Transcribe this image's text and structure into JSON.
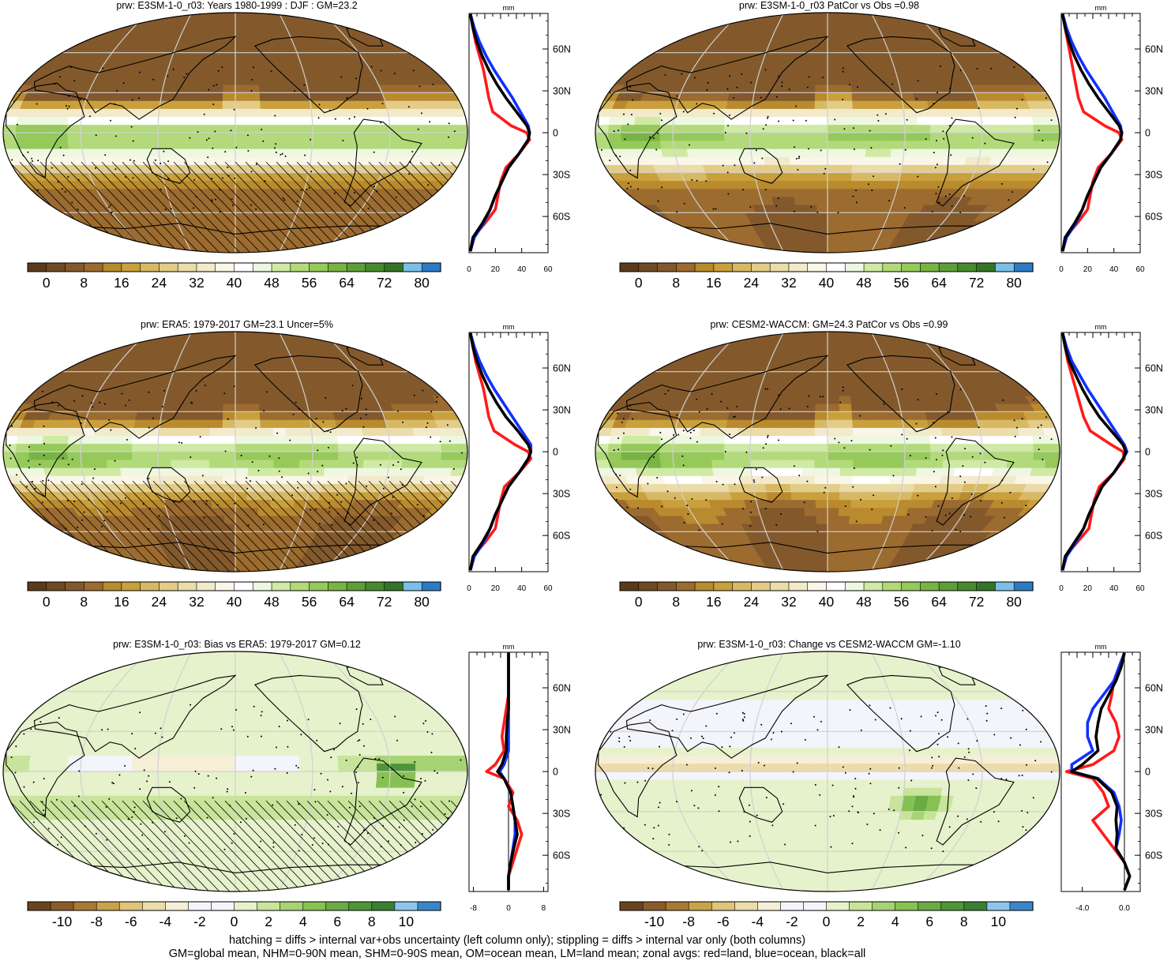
{
  "colors": {
    "abs_levels": [
      "#5a3a1a",
      "#6e4a24",
      "#83592c",
      "#9c6b2f",
      "#b98a2e",
      "#c9a03c",
      "#d8b963",
      "#e3cc88",
      "#ecdcaa",
      "#f3eacb",
      "#faf6e8",
      "#ffffff",
      "#eef8e0",
      "#cfeaa4",
      "#b2da7a",
      "#95c95a",
      "#78b444",
      "#5e9e37",
      "#478a2e",
      "#337527",
      "#7cc0e8",
      "#2c7bc4"
    ],
    "diff_levels": [
      "#6a4420",
      "#8a5c2a",
      "#a87a34",
      "#c9a24a",
      "#dfc47a",
      "#ecdcac",
      "#f6efd6",
      "#f4f5fb",
      "#f4f5fb",
      "#e6f2cc",
      "#c8e49a",
      "#a6d373",
      "#86c153",
      "#6aab45",
      "#4f953a",
      "#3a7f32",
      "#8cc6ec",
      "#3a86c8"
    ],
    "zonal_land": "#ff1a1a",
    "zonal_ocean": "#1030ff",
    "zonal_all": "#000000"
  },
  "chart_data": [
    {
      "type": "heatmap",
      "title": "prw: E3SM-1-0_r03: Years 1980-1999 : DJF : GM=23.2",
      "colorbar_ticks": [
        "0",
        "8",
        "16",
        "24",
        "32",
        "40",
        "48",
        "56",
        "64",
        "72",
        "80"
      ],
      "zonal": {
        "unit": "mm",
        "xlim": [
          0,
          60
        ],
        "xticks": [
          "0",
          "20",
          "40",
          "60"
        ],
        "lat_ticks": [
          "60N",
          "30N",
          "0",
          "30S",
          "60S"
        ],
        "lat": [
          85,
          75,
          65,
          55,
          45,
          35,
          25,
          15,
          5,
          0,
          -5,
          -15,
          -25,
          -35,
          -45,
          -55,
          -65,
          -75,
          -85
        ],
        "series": [
          {
            "name": "land",
            "values": [
              1,
              3,
              5,
              8,
              11,
              13,
              15,
              18,
              32,
              44,
              46,
              38,
              28,
              24,
              22,
              20,
              12,
              3,
              1
            ]
          },
          {
            "name": "ocean",
            "values": [
              1,
              4,
              8,
              13,
              19,
              26,
              33,
              39,
              45,
              46,
              45,
              38,
              30,
              25,
              20,
              16,
              11,
              4,
              1
            ]
          },
          {
            "name": "all",
            "values": [
              1,
              3,
              6,
              10,
              15,
              21,
              28,
              36,
              44,
              46,
              45,
              38,
              30,
              25,
              20,
              16,
              10,
              3,
              1
            ]
          }
        ]
      }
    },
    {
      "type": "heatmap",
      "title": "prw: E3SM-1-0_r03 PatCor vs Obs =0.98",
      "colorbar_ticks": [
        "0",
        "8",
        "16",
        "24",
        "32",
        "40",
        "48",
        "56",
        "64",
        "72",
        "80"
      ],
      "zonal": {
        "unit": "mm",
        "xlim": [
          0,
          60
        ],
        "xticks": [
          "0",
          "20",
          "40",
          "60"
        ],
        "lat_ticks": [
          "60N",
          "30N",
          "0",
          "30S",
          "60S"
        ],
        "lat": [
          85,
          75,
          65,
          55,
          45,
          35,
          25,
          15,
          5,
          0,
          -5,
          -15,
          -25,
          -35,
          -45,
          -55,
          -65,
          -75,
          -85
        ],
        "series": [
          {
            "name": "land",
            "values": [
              1,
              3,
              5,
              7,
              9,
              11,
              13,
              17,
              33,
              44,
              46,
              38,
              28,
              24,
              22,
              20,
              12,
              3,
              1
            ]
          },
          {
            "name": "ocean",
            "values": [
              1,
              4,
              8,
              13,
              19,
              26,
              33,
              39,
              45,
              46,
              45,
              38,
              30,
              25,
              20,
              16,
              11,
              4,
              1
            ]
          },
          {
            "name": "all",
            "values": [
              1,
              3,
              6,
              10,
              15,
              21,
              28,
              36,
              44,
              46,
              45,
              38,
              30,
              25,
              20,
              16,
              10,
              3,
              1
            ]
          }
        ]
      }
    },
    {
      "type": "heatmap",
      "title": "prw: ERA5: 1979-2017 GM=23.1 Uncer=5%",
      "colorbar_ticks": [
        "0",
        "8",
        "16",
        "24",
        "32",
        "40",
        "48",
        "56",
        "64",
        "72",
        "80"
      ],
      "zonal": {
        "unit": "mm",
        "xlim": [
          0,
          60
        ],
        "xticks": [
          "0",
          "20",
          "40",
          "60"
        ],
        "lat_ticks": [
          "60N",
          "30N",
          "0",
          "30S",
          "60S"
        ],
        "lat": [
          85,
          75,
          65,
          55,
          45,
          35,
          25,
          15,
          5,
          0,
          -5,
          -15,
          -25,
          -35,
          -45,
          -55,
          -65,
          -75,
          -85
        ],
        "series": [
          {
            "name": "land",
            "values": [
              1,
              3,
              5,
              8,
              11,
              13,
              15,
              19,
              35,
              45,
              47,
              38,
              27,
              24,
              22,
              20,
              12,
              3,
              1
            ]
          },
          {
            "name": "ocean",
            "values": [
              1,
              4,
              8,
              13,
              19,
              26,
              33,
              40,
              47,
              47,
              45,
              38,
              30,
              25,
              20,
              16,
              11,
              4,
              1
            ]
          },
          {
            "name": "all",
            "values": [
              1,
              3,
              6,
              10,
              15,
              21,
              28,
              37,
              45,
              47,
              45,
              38,
              30,
              25,
              20,
              16,
              10,
              3,
              1
            ]
          }
        ]
      }
    },
    {
      "type": "heatmap",
      "title": "prw: CESM2-WACCM: GM=24.3 PatCor vs Obs =0.99",
      "colorbar_ticks": [
        "0",
        "8",
        "16",
        "24",
        "32",
        "40",
        "48",
        "56",
        "64",
        "72",
        "80"
      ],
      "zonal": {
        "unit": "mm",
        "xlim": [
          0,
          60
        ],
        "xticks": [
          "0",
          "20",
          "40",
          "60"
        ],
        "lat_ticks": [
          "60N",
          "30N",
          "0",
          "30S",
          "60S"
        ],
        "lat": [
          85,
          75,
          65,
          55,
          45,
          35,
          25,
          15,
          5,
          0,
          -5,
          -15,
          -25,
          -35,
          -45,
          -55,
          -65,
          -75,
          -85
        ],
        "series": [
          {
            "name": "land",
            "values": [
              1,
              3,
              5,
              8,
              11,
              14,
              17,
              22,
              38,
              47,
              48,
              40,
              29,
              25,
              23,
              21,
              12,
              3,
              1
            ]
          },
          {
            "name": "ocean",
            "values": [
              1,
              4,
              8,
              14,
              20,
              27,
              34,
              41,
              48,
              50,
              47,
              40,
              31,
              26,
              21,
              17,
              11,
              4,
              1
            ]
          },
          {
            "name": "all",
            "values": [
              1,
              3,
              6,
              11,
              16,
              22,
              29,
              38,
              47,
              49,
              47,
              40,
              31,
              26,
              21,
              17,
              10,
              3,
              1
            ]
          }
        ]
      }
    },
    {
      "type": "heatmap",
      "title": "prw: E3SM-1-0_r03: Bias vs ERA5: 1979-2017 GM=0.12",
      "colorbar_ticks": [
        "-10",
        "-8",
        "-6",
        "-4",
        "-2",
        "0",
        "2",
        "4",
        "6",
        "8",
        "10"
      ],
      "zonal": {
        "unit": "mm",
        "xlim": [
          -9,
          9
        ],
        "xticks": [
          "-8",
          "0",
          "8"
        ],
        "lat_ticks": [
          "60N",
          "30N",
          "0",
          "30S",
          "60S"
        ],
        "lat": [
          85,
          75,
          65,
          55,
          45,
          35,
          25,
          15,
          5,
          0,
          -5,
          -15,
          -25,
          -35,
          -45,
          -55,
          -65,
          -75,
          -85
        ],
        "series": [
          {
            "name": "land",
            "values": [
              0,
              0,
              0,
              0,
              -0.5,
              -1,
              -1.5,
              -1,
              -3,
              -5,
              -1,
              1,
              0,
              2,
              3,
              2,
              1,
              0,
              0
            ]
          },
          {
            "name": "ocean",
            "values": [
              0,
              0,
              0,
              0,
              0,
              0,
              0,
              0,
              -1,
              -2,
              -1,
              0.5,
              1,
              1.5,
              1.5,
              1,
              0.5,
              0,
              0
            ]
          },
          {
            "name": "all",
            "values": [
              0,
              0,
              0,
              0,
              0,
              -0.3,
              -0.5,
              -0.5,
              -1.5,
              -2.5,
              -1,
              0.5,
              1,
              1.5,
              2,
              1.2,
              0.5,
              0,
              0
            ]
          }
        ]
      }
    },
    {
      "type": "heatmap",
      "title": "prw: E3SM-1-0_r03: Change vs CESM2-WACCM GM=-1.10",
      "colorbar_ticks": [
        "-10",
        "-8",
        "-6",
        "-4",
        "-2",
        "0",
        "2",
        "4",
        "6",
        "8",
        "10"
      ],
      "zonal": {
        "unit": "mm",
        "xlim": [
          -6,
          1.5
        ],
        "xticks": [
          "-4.0",
          "0.0"
        ],
        "lat_ticks": [
          "60N",
          "30N",
          "0",
          "30S",
          "60S"
        ],
        "lat": [
          85,
          75,
          65,
          55,
          45,
          35,
          25,
          15,
          5,
          0,
          -5,
          -15,
          -25,
          -35,
          -45,
          -55,
          -65,
          -75,
          -85
        ],
        "series": [
          {
            "name": "land",
            "values": [
              0,
              -0.5,
              -1,
              -1.2,
              -1.5,
              -0.8,
              -0.5,
              -1,
              -3,
              -5.5,
              -3,
              -2,
              -1.5,
              -3,
              -2,
              -1,
              0,
              0.5,
              0
            ]
          },
          {
            "name": "ocean",
            "values": [
              0,
              -0.5,
              -1,
              -2,
              -3,
              -3.5,
              -3.5,
              -3,
              -5,
              -5,
              -2.5,
              -1,
              -0.5,
              -0.3,
              -0.5,
              -0.8,
              0,
              0.5,
              0
            ]
          },
          {
            "name": "all",
            "values": [
              0,
              -0.3,
              -0.8,
              -1.5,
              -2.2,
              -2.5,
              -2.7,
              -2.5,
              -4,
              -5,
              -2.6,
              -1.2,
              -0.7,
              -0.8,
              -0.7,
              -0.8,
              0,
              0.5,
              0
            ]
          }
        ]
      }
    }
  ],
  "footnote": {
    "line1": "hatching = diffs > internal var+obs uncertainty (left column only); stippling = diffs > internal var only (both columns)",
    "line2": "GM=global mean, NHM=0-90N mean, SHM=0-90S mean, OM=ocean mean, LM=land mean; zonal avgs: red=land, blue=ocean, black=all"
  }
}
